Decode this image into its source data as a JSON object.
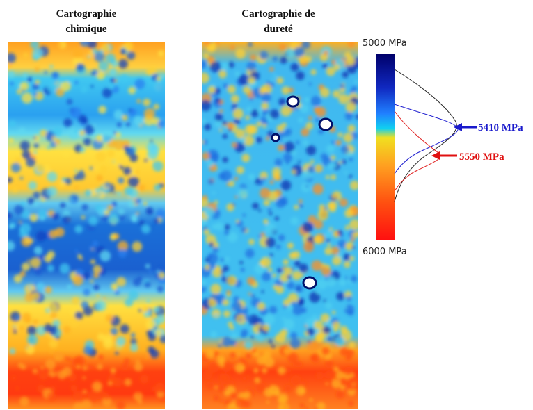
{
  "figure": {
    "maps": [
      {
        "title": [
          "Cartographie",
          "chimique"
        ]
      },
      {
        "title": [
          "Cartographie de",
          "dureté"
        ]
      }
    ],
    "colorbar": {
      "top_label": "5000 MPa",
      "bottom_label": "6000 MPa"
    },
    "annotations": [
      {
        "label": "5410 MPa",
        "color": "#1a1acc"
      },
      {
        "label": "5550 MPa",
        "color": "#e01010"
      }
    ]
  }
}
